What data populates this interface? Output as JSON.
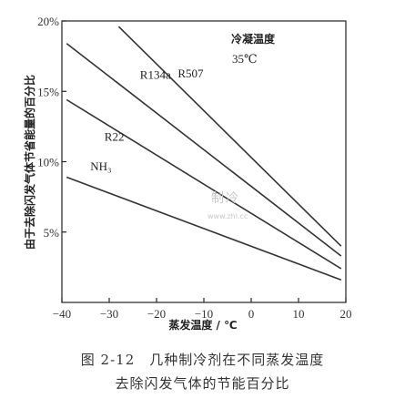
{
  "chart_data": {
    "type": "line",
    "ylabel": "由于去除闪发气体节省能量的百分比",
    "xlabel": "蒸发温度 / ℃",
    "xlim": [
      -40,
      20
    ],
    "ylim": [
      0,
      20
    ],
    "x_ticks": [
      {
        "value": -40,
        "label": "−40"
      },
      {
        "value": -30,
        "label": "−30"
      },
      {
        "value": -20,
        "label": "−20"
      },
      {
        "value": -10,
        "label": "−10"
      },
      {
        "value": 0,
        "label": "0"
      },
      {
        "value": 10,
        "label": "10"
      },
      {
        "value": 20,
        "label": "20"
      }
    ],
    "y_ticks": [
      {
        "value": 5,
        "label": "5%"
      },
      {
        "value": 10,
        "label": "10%"
      },
      {
        "value": 15,
        "label": "15%"
      },
      {
        "value": 20,
        "label": "20%"
      }
    ],
    "series": [
      {
        "name": "NH₃",
        "x": [
          -39,
          19
        ],
        "y": [
          8.9,
          1.6
        ]
      },
      {
        "name": "R22",
        "x": [
          -39,
          19
        ],
        "y": [
          14.4,
          2.4
        ]
      },
      {
        "name": "R134a",
        "x": [
          -39,
          19
        ],
        "y": [
          18.4,
          3.3
        ]
      },
      {
        "name": "R507",
        "x": [
          -28,
          19
        ],
        "y": [
          19.6,
          4.0
        ]
      }
    ],
    "annotation": {
      "title": "冷凝温度",
      "value": "35℃"
    },
    "grid": false,
    "colors": {
      "line": "#333333",
      "axis": "#222222"
    }
  },
  "watermark": {
    "main": "制冷",
    "sub": "www.zhl.cc"
  },
  "caption": {
    "line1": "图 2-12　几种制冷剂在不同蒸发温度",
    "line2": "去除闪发气体的节能百分比"
  }
}
